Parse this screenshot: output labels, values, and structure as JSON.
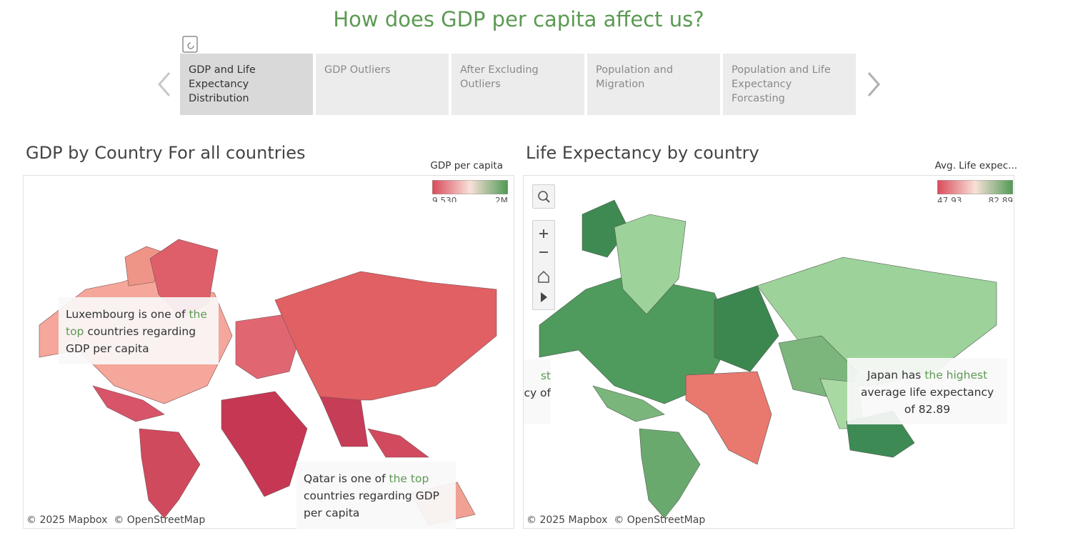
{
  "title": "How does GDP per capita affect us?",
  "story_points": [
    "GDP and  Life Expectancy Distribution",
    "GDP Outliers",
    "After Excluding Outliers",
    "Population and Migration",
    "Population and Life Expectancy Forcasting"
  ],
  "panels": [
    {
      "title": "GDP by Country For all countries",
      "legend": {
        "title": "GDP per capita",
        "min_label": "9,530",
        "max_label": "2M"
      },
      "annotations": [
        {
          "parts": [
            "Luxembourg is one of ",
            "the top",
            " countries regarding GDP per capita"
          ]
        },
        {
          "parts": [
            "Qatar is one of ",
            "the top",
            " countries regarding GDP per capita"
          ]
        }
      ],
      "attribution": [
        "© 2025 Mapbox",
        "© OpenStreetMap"
      ]
    },
    {
      "title": "Life Expectancy by country",
      "legend": {
        "title": "Avg. Life expec...",
        "min_label": "47.93",
        "max_label": "82.89"
      },
      "annotations": [
        {
          "parts": [
            "st",
            "cy of"
          ]
        },
        {
          "parts": [
            "Japan has ",
            "the highest",
            " average life expectancy of 82.89"
          ]
        }
      ],
      "attribution": [
        "© 2025 Mapbox",
        "© OpenStreetMap"
      ]
    }
  ]
}
